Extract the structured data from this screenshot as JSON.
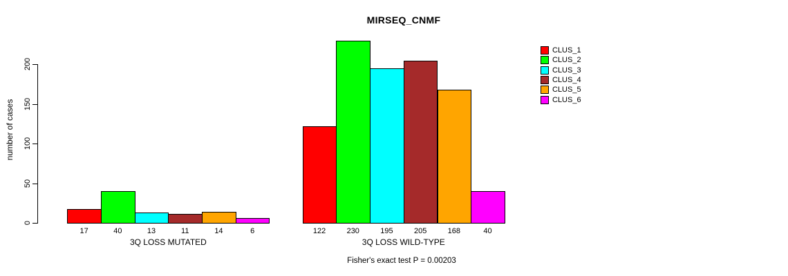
{
  "title": "MIRSEQ_CNMF",
  "y_axis_label": "number of cases",
  "annotation": "Fisher's exact test P = 0.00203",
  "legend": {
    "position": "right",
    "entries": [
      {
        "label": "CLUS_1",
        "color": "#FF0000"
      },
      {
        "label": "CLUS_2",
        "color": "#00FF00"
      },
      {
        "label": "CLUS_3",
        "color": "#00FFFF"
      },
      {
        "label": "CLUS_4",
        "color": "#A52A2A"
      },
      {
        "label": "CLUS_5",
        "color": "#FFA500"
      },
      {
        "label": "CLUS_6",
        "color": "#FF00FF"
      }
    ]
  },
  "chart_data": {
    "type": "bar",
    "title": "MIRSEQ_CNMF",
    "xlabel": "",
    "ylabel": "number of cases",
    "ylim": [
      0,
      230
    ],
    "axis_ticks": [
      0,
      50,
      100,
      150,
      200
    ],
    "grid": false,
    "legend_position": "right",
    "categories": [
      "3Q LOSS MUTATED",
      "3Q LOSS WILD-TYPE"
    ],
    "series": [
      {
        "name": "CLUS_1",
        "color": "#FF0000",
        "values": [
          17,
          122
        ]
      },
      {
        "name": "CLUS_2",
        "color": "#00FF00",
        "values": [
          40,
          230
        ]
      },
      {
        "name": "CLUS_3",
        "color": "#00FFFF",
        "values": [
          13,
          195
        ]
      },
      {
        "name": "CLUS_4",
        "color": "#A52A2A",
        "values": [
          11,
          205
        ]
      },
      {
        "name": "CLUS_5",
        "color": "#FFA500",
        "values": [
          14,
          168
        ]
      },
      {
        "name": "CLUS_6",
        "color": "#FF00FF",
        "values": [
          6,
          40
        ]
      }
    ],
    "bar_value_labels_visible": true,
    "annotation": "Fisher's exact test P = 0.00203"
  }
}
